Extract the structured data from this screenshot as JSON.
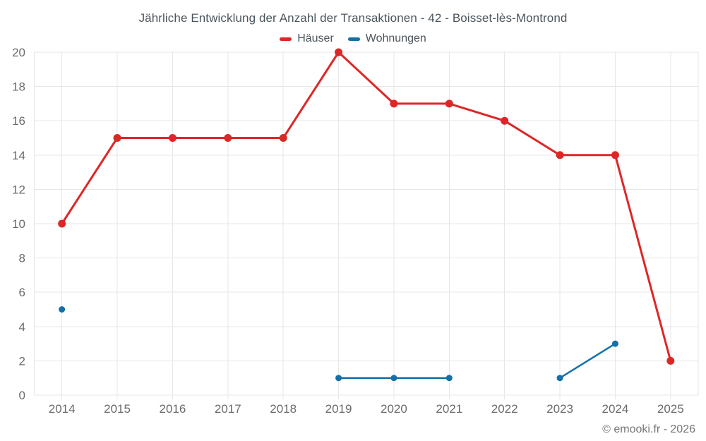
{
  "title": "Jährliche Entwicklung der Anzahl der Transaktionen - 42 - Boisset-lès-Montrond",
  "legend": {
    "items": [
      {
        "label": "Häuser",
        "color": "#dd2727"
      },
      {
        "label": "Wohnungen",
        "color": "#1470a8"
      }
    ]
  },
  "footer": {
    "copyright": "© emooki.fr - 2026"
  },
  "colors": {
    "grid": "#e7e7e7",
    "axis_text": "#6b6b6b",
    "title_text": "#4c555c",
    "haeuser_red": "#dd2727",
    "wohnungen_blue": "#1470a8"
  },
  "chart_data": {
    "type": "line",
    "title": "Jährliche Entwicklung der Anzahl der Transaktionen - 42 - Boisset-lès-Montrond",
    "x": [
      2014,
      2015,
      2016,
      2017,
      2018,
      2019,
      2020,
      2021,
      2022,
      2023,
      2024,
      2025
    ],
    "series": [
      {
        "name": "Häuser",
        "color": "#dd2727",
        "line_width": 3,
        "point_radius": 5.5,
        "values": [
          10,
          15,
          15,
          15,
          15,
          20,
          17,
          17,
          16,
          14,
          14,
          2
        ]
      },
      {
        "name": "Wohnungen",
        "color": "#1470a8",
        "line_width": 2.5,
        "point_radius": 4.5,
        "values": [
          5,
          null,
          null,
          null,
          null,
          1,
          1,
          1,
          null,
          1,
          3,
          null
        ]
      }
    ],
    "xlabel": "",
    "ylabel": "",
    "ylim": [
      0,
      20
    ],
    "ytick_step": 2,
    "grid": true,
    "legend_position": "top"
  }
}
